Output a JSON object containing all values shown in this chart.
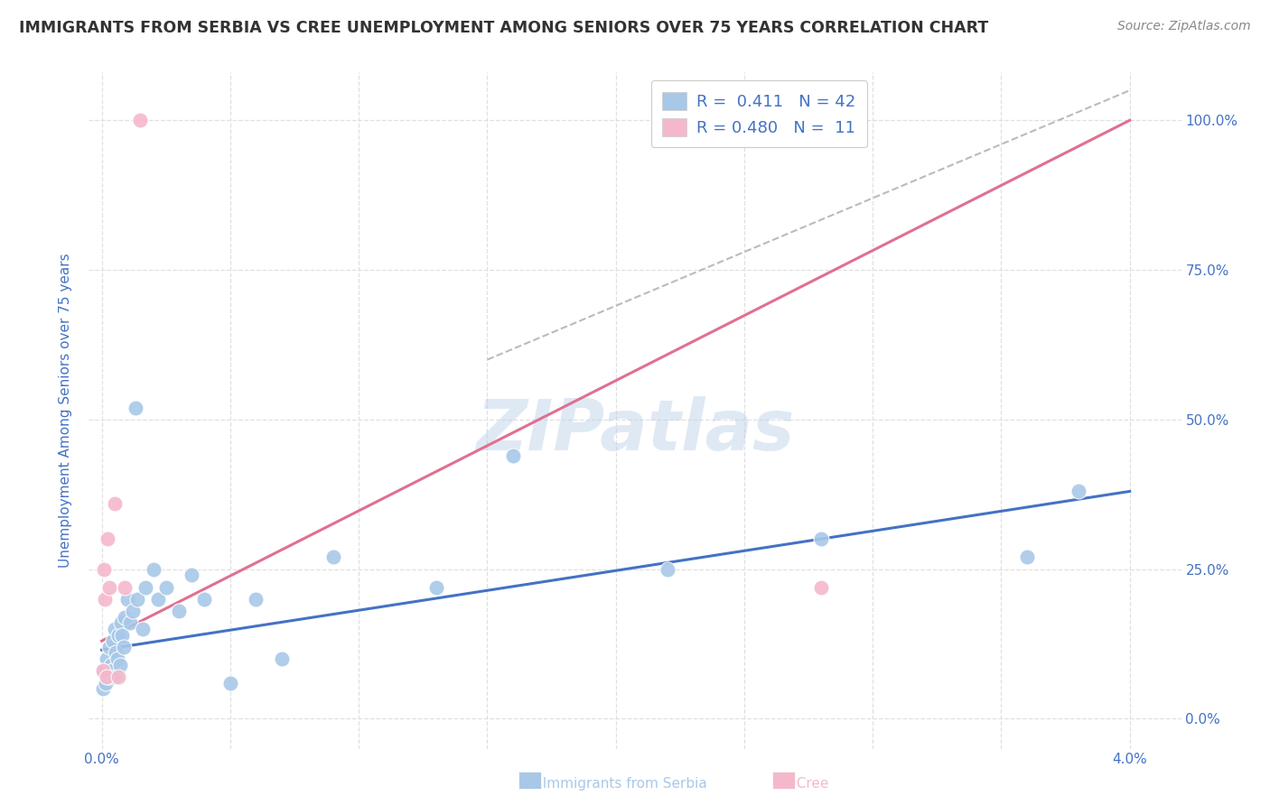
{
  "title": "IMMIGRANTS FROM SERBIA VS CREE UNEMPLOYMENT AMONG SENIORS OVER 75 YEARS CORRELATION CHART",
  "source": "Source: ZipAtlas.com",
  "ylabel": "Unemployment Among Seniors over 75 years",
  "y_ticks": [
    0.0,
    0.25,
    0.5,
    0.75,
    1.0
  ],
  "y_tick_labels_right": [
    "0.0%",
    "25.0%",
    "50.0%",
    "75.0%",
    "100.0%"
  ],
  "x_ticks": [
    0.0,
    0.005,
    0.01,
    0.015,
    0.02,
    0.025,
    0.03,
    0.035,
    0.04
  ],
  "x_tick_labels": [
    "0.0%",
    "",
    "",
    "",
    "",
    "",
    "",
    "",
    "4.0%"
  ],
  "xlim": [
    -0.0005,
    0.042
  ],
  "ylim": [
    -0.05,
    1.08
  ],
  "serbia_R": "0.411",
  "serbia_N": "42",
  "cree_R": "0.480",
  "cree_N": "11",
  "serbia_color": "#a8c8e8",
  "cree_color": "#f5b8cb",
  "serbia_line_color": "#4472c4",
  "cree_line_color": "#e07090",
  "diagonal_color": "#bbbbbb",
  "legend_label_serbia": "Immigrants from Serbia",
  "legend_label_cree": "Cree",
  "serbia_points_x": [
    5e-05,
    0.0001,
    0.00015,
    0.0002,
    0.00025,
    0.0003,
    0.00035,
    0.0004,
    0.00045,
    0.0005,
    0.0005,
    0.00055,
    0.0006,
    0.00065,
    0.0007,
    0.00075,
    0.0008,
    0.00085,
    0.0009,
    0.001,
    0.0011,
    0.0012,
    0.0013,
    0.0014,
    0.0016,
    0.0017,
    0.002,
    0.0022,
    0.0025,
    0.003,
    0.0035,
    0.004,
    0.005,
    0.006,
    0.007,
    0.009,
    0.013,
    0.016,
    0.022,
    0.028,
    0.036,
    0.038
  ],
  "serbia_points_y": [
    0.05,
    0.08,
    0.06,
    0.1,
    0.07,
    0.12,
    0.09,
    0.08,
    0.13,
    0.15,
    0.07,
    0.11,
    0.1,
    0.14,
    0.09,
    0.16,
    0.14,
    0.12,
    0.17,
    0.2,
    0.16,
    0.18,
    0.52,
    0.2,
    0.15,
    0.22,
    0.25,
    0.2,
    0.22,
    0.18,
    0.24,
    0.2,
    0.06,
    0.2,
    0.1,
    0.27,
    0.22,
    0.44,
    0.25,
    0.3,
    0.27,
    0.38
  ],
  "cree_points_x": [
    5e-05,
    8e-05,
    0.00012,
    0.00018,
    0.00022,
    0.00028,
    0.0005,
    0.00065,
    0.0009,
    0.0015,
    0.028
  ],
  "cree_points_y": [
    0.08,
    0.25,
    0.2,
    0.07,
    0.3,
    0.22,
    0.36,
    0.07,
    0.22,
    1.0,
    0.22
  ],
  "serbia_line_x": [
    0.0,
    0.04
  ],
  "serbia_line_y": [
    0.115,
    0.38
  ],
  "cree_line_x": [
    0.0,
    0.04
  ],
  "cree_line_y": [
    0.13,
    1.0
  ],
  "diagonal_line_x": [
    0.015,
    0.04
  ],
  "diagonal_line_y": [
    0.6,
    1.05
  ],
  "watermark": "ZIPatlas",
  "background_color": "#ffffff",
  "grid_color": "#e0e0e0",
  "title_color": "#333333",
  "right_axis_color": "#4472c4",
  "source_color": "#888888"
}
